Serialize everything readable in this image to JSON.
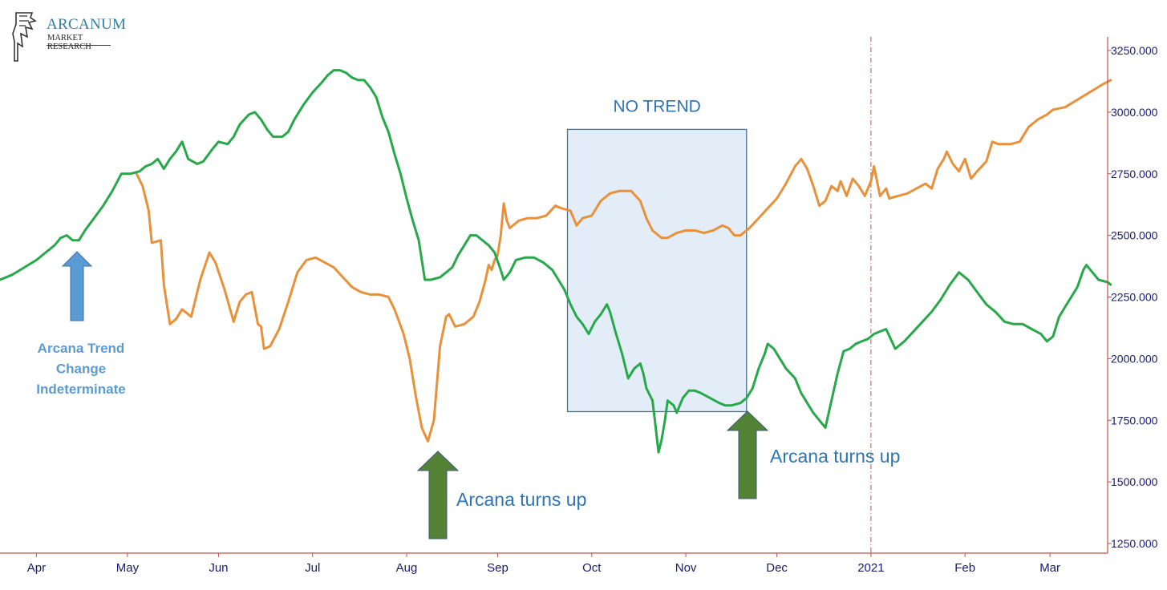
{
  "logo": {
    "name": "ARCANUM",
    "subtitle": "MARKET RESEARCH"
  },
  "annotations": {
    "no_trend": "NO TREND",
    "indeterminate": "Arcana Trend\nChange\nIndeterminate",
    "turns_up_1": "Arcana turns up",
    "turns_up_2": "Arcana turns up"
  },
  "colors": {
    "price_line": "#e8913a",
    "indicator_line": "#27a84a",
    "up_arrow_dark": "#548235",
    "up_arrow_blue": "#5b9bd5",
    "no_trend_box": "#e3edf8",
    "axis": "#c0504d",
    "tick_text": "#1a1a6e",
    "annotation_text": "#2e74b5"
  },
  "chart_data": {
    "type": "line",
    "x_axis": {
      "ticks": [
        {
          "label": "Apr",
          "x": 12
        },
        {
          "label": "May",
          "x": 42
        },
        {
          "label": "Jun",
          "x": 72
        },
        {
          "label": "Jul",
          "x": 103
        },
        {
          "label": "Aug",
          "x": 134
        },
        {
          "label": "Sep",
          "x": 164
        },
        {
          "label": "Oct",
          "x": 195
        },
        {
          "label": "Nov",
          "x": 226
        },
        {
          "label": "Dec",
          "x": 256
        },
        {
          "label": "2021",
          "x": 287
        },
        {
          "label": "Feb",
          "x": 318
        },
        {
          "label": "Mar",
          "x": 346
        }
      ],
      "range": [
        0,
        365
      ]
    },
    "y_axis": {
      "ticks": [
        "3250.000",
        "3000.000",
        "2750.000",
        "2500.000",
        "2250.000",
        "2000.000",
        "1750.000",
        "1500.000",
        "1250.000"
      ],
      "values": [
        3250,
        3000,
        2750,
        2500,
        2250,
        2000,
        1750,
        1500,
        1250
      ],
      "range": [
        1200,
        3290
      ]
    },
    "no_trend_range": {
      "x": [
        187,
        246
      ],
      "y": [
        1785,
        2930
      ]
    },
    "year_marker_x": 287,
    "series": [
      {
        "key": "price",
        "points": [
          [
            45,
            2750
          ],
          [
            47,
            2700
          ],
          [
            49,
            2600
          ],
          [
            50,
            2470
          ],
          [
            53,
            2480
          ],
          [
            54,
            2300
          ],
          [
            56,
            2140
          ],
          [
            58,
            2160
          ],
          [
            60,
            2200
          ],
          [
            63,
            2170
          ],
          [
            66,
            2320
          ],
          [
            69,
            2430
          ],
          [
            71,
            2390
          ],
          [
            74,
            2280
          ],
          [
            77,
            2150
          ],
          [
            79,
            2230
          ],
          [
            81,
            2260
          ],
          [
            83,
            2270
          ],
          [
            85,
            2140
          ],
          [
            86,
            2130
          ],
          [
            87,
            2040
          ],
          [
            89,
            2050
          ],
          [
            92,
            2120
          ],
          [
            95,
            2230
          ],
          [
            98,
            2350
          ],
          [
            101,
            2400
          ],
          [
            104,
            2410
          ],
          [
            107,
            2390
          ],
          [
            110,
            2370
          ],
          [
            113,
            2330
          ],
          [
            116,
            2290
          ],
          [
            119,
            2270
          ],
          [
            122,
            2260
          ],
          [
            125,
            2260
          ],
          [
            128,
            2250
          ],
          [
            130,
            2200
          ],
          [
            133,
            2100
          ],
          [
            135,
            2000
          ],
          [
            137,
            1850
          ],
          [
            139,
            1720
          ],
          [
            141,
            1665
          ],
          [
            143,
            1750
          ],
          [
            145,
            2050
          ],
          [
            147,
            2170
          ],
          [
            148,
            2180
          ],
          [
            150,
            2130
          ],
          [
            153,
            2140
          ],
          [
            156,
            2170
          ],
          [
            158,
            2230
          ],
          [
            160,
            2320
          ],
          [
            161,
            2380
          ],
          [
            162,
            2360
          ],
          [
            163,
            2400
          ],
          [
            164,
            2420
          ],
          [
            165,
            2500
          ],
          [
            166,
            2630
          ],
          [
            167,
            2560
          ],
          [
            168,
            2530
          ],
          [
            171,
            2560
          ],
          [
            174,
            2570
          ],
          [
            177,
            2570
          ],
          [
            180,
            2580
          ],
          [
            183,
            2620
          ],
          [
            185,
            2610
          ],
          [
            188,
            2600
          ],
          [
            190,
            2540
          ],
          [
            192,
            2570
          ],
          [
            195,
            2580
          ],
          [
            198,
            2640
          ],
          [
            201,
            2670
          ],
          [
            204,
            2680
          ],
          [
            208,
            2680
          ],
          [
            211,
            2640
          ],
          [
            213,
            2570
          ],
          [
            215,
            2520
          ],
          [
            218,
            2490
          ],
          [
            220,
            2490
          ],
          [
            223,
            2510
          ],
          [
            226,
            2520
          ],
          [
            229,
            2520
          ],
          [
            232,
            2510
          ],
          [
            235,
            2520
          ],
          [
            238,
            2540
          ],
          [
            240,
            2530
          ],
          [
            242,
            2500
          ],
          [
            244,
            2500
          ],
          [
            247,
            2530
          ],
          [
            250,
            2570
          ],
          [
            253,
            2610
          ],
          [
            256,
            2650
          ],
          [
            259,
            2710
          ],
          [
            262,
            2780
          ],
          [
            264,
            2810
          ],
          [
            266,
            2770
          ],
          [
            268,
            2700
          ],
          [
            270,
            2620
          ],
          [
            272,
            2640
          ],
          [
            274,
            2700
          ],
          [
            276,
            2680
          ],
          [
            277,
            2720
          ],
          [
            279,
            2660
          ],
          [
            281,
            2730
          ],
          [
            283,
            2700
          ],
          [
            285,
            2660
          ],
          [
            287,
            2720
          ],
          [
            288,
            2780
          ],
          [
            290,
            2660
          ],
          [
            292,
            2690
          ],
          [
            293,
            2650
          ],
          [
            296,
            2660
          ],
          [
            299,
            2670
          ],
          [
            302,
            2690
          ],
          [
            305,
            2710
          ],
          [
            307,
            2690
          ],
          [
            309,
            2770
          ],
          [
            311,
            2810
          ],
          [
            312,
            2840
          ],
          [
            314,
            2790
          ],
          [
            316,
            2760
          ],
          [
            318,
            2810
          ],
          [
            320,
            2730
          ],
          [
            322,
            2760
          ],
          [
            325,
            2800
          ],
          [
            327,
            2880
          ],
          [
            329,
            2870
          ],
          [
            333,
            2870
          ],
          [
            336,
            2880
          ],
          [
            339,
            2940
          ],
          [
            342,
            2970
          ],
          [
            345,
            2990
          ],
          [
            347,
            3010
          ],
          [
            351,
            3020
          ],
          [
            355,
            3050
          ],
          [
            359,
            3080
          ],
          [
            363,
            3110
          ],
          [
            366,
            3130
          ]
        ]
      },
      {
        "key": "indicator",
        "points": [
          [
            0,
            2320
          ],
          [
            4,
            2340
          ],
          [
            8,
            2370
          ],
          [
            12,
            2400
          ],
          [
            15,
            2430
          ],
          [
            18,
            2460
          ],
          [
            20,
            2490
          ],
          [
            22,
            2500
          ],
          [
            24,
            2480
          ],
          [
            26,
            2480
          ],
          [
            28,
            2520
          ],
          [
            31,
            2570
          ],
          [
            34,
            2620
          ],
          [
            37,
            2680
          ],
          [
            40,
            2750
          ],
          [
            43,
            2750
          ],
          [
            46,
            2760
          ],
          [
            48,
            2780
          ],
          [
            50,
            2790
          ],
          [
            52,
            2810
          ],
          [
            54,
            2770
          ],
          [
            56,
            2810
          ],
          [
            58,
            2840
          ],
          [
            60,
            2880
          ],
          [
            62,
            2810
          ],
          [
            65,
            2790
          ],
          [
            67,
            2800
          ],
          [
            70,
            2850
          ],
          [
            72,
            2880
          ],
          [
            75,
            2870
          ],
          [
            77,
            2900
          ],
          [
            79,
            2950
          ],
          [
            82,
            2990
          ],
          [
            84,
            3000
          ],
          [
            86,
            2970
          ],
          [
            88,
            2930
          ],
          [
            90,
            2900
          ],
          [
            93,
            2900
          ],
          [
            95,
            2920
          ],
          [
            97,
            2970
          ],
          [
            100,
            3030
          ],
          [
            103,
            3080
          ],
          [
            106,
            3120
          ],
          [
            108,
            3150
          ],
          [
            110,
            3170
          ],
          [
            112,
            3170
          ],
          [
            114,
            3160
          ],
          [
            116,
            3140
          ],
          [
            118,
            3130
          ],
          [
            120,
            3130
          ],
          [
            122,
            3100
          ],
          [
            124,
            3060
          ],
          [
            126,
            2980
          ],
          [
            128,
            2920
          ],
          [
            130,
            2830
          ],
          [
            132,
            2750
          ],
          [
            134,
            2650
          ],
          [
            136,
            2560
          ],
          [
            138,
            2480
          ],
          [
            140,
            2320
          ],
          [
            142,
            2320
          ],
          [
            145,
            2330
          ],
          [
            147,
            2350
          ],
          [
            149,
            2370
          ],
          [
            151,
            2420
          ],
          [
            153,
            2460
          ],
          [
            155,
            2500
          ],
          [
            157,
            2500
          ],
          [
            159,
            2480
          ],
          [
            161,
            2460
          ],
          [
            163,
            2430
          ],
          [
            165,
            2360
          ],
          [
            166,
            2320
          ],
          [
            168,
            2350
          ],
          [
            170,
            2400
          ],
          [
            173,
            2410
          ],
          [
            176,
            2410
          ],
          [
            179,
            2390
          ],
          [
            182,
            2360
          ],
          [
            184,
            2320
          ],
          [
            186,
            2280
          ],
          [
            188,
            2220
          ],
          [
            190,
            2170
          ],
          [
            192,
            2140
          ],
          [
            194,
            2100
          ],
          [
            196,
            2150
          ],
          [
            198,
            2180
          ],
          [
            200,
            2220
          ],
          [
            201,
            2190
          ],
          [
            203,
            2100
          ],
          [
            205,
            2020
          ],
          [
            207,
            1920
          ],
          [
            209,
            1960
          ],
          [
            211,
            1980
          ],
          [
            212,
            1940
          ],
          [
            213,
            1880
          ],
          [
            215,
            1830
          ],
          [
            216,
            1730
          ],
          [
            217,
            1620
          ],
          [
            218,
            1670
          ],
          [
            219,
            1740
          ],
          [
            220,
            1830
          ],
          [
            222,
            1810
          ],
          [
            223,
            1780
          ],
          [
            225,
            1840
          ],
          [
            227,
            1870
          ],
          [
            229,
            1870
          ],
          [
            231,
            1860
          ],
          [
            234,
            1840
          ],
          [
            237,
            1820
          ],
          [
            239,
            1810
          ],
          [
            241,
            1810
          ],
          [
            244,
            1820
          ],
          [
            246,
            1840
          ],
          [
            248,
            1880
          ],
          [
            250,
            1960
          ],
          [
            252,
            2020
          ],
          [
            253,
            2060
          ],
          [
            255,
            2040
          ],
          [
            257,
            2000
          ],
          [
            259,
            1960
          ],
          [
            262,
            1920
          ],
          [
            264,
            1860
          ],
          [
            266,
            1820
          ],
          [
            268,
            1780
          ],
          [
            270,
            1750
          ],
          [
            272,
            1720
          ],
          [
            274,
            1830
          ],
          [
            276,
            1940
          ],
          [
            278,
            2030
          ],
          [
            280,
            2040
          ],
          [
            282,
            2060
          ],
          [
            284,
            2070
          ],
          [
            286,
            2080
          ],
          [
            288,
            2100
          ],
          [
            290,
            2110
          ],
          [
            292,
            2120
          ],
          [
            295,
            2040
          ],
          [
            298,
            2070
          ],
          [
            301,
            2110
          ],
          [
            304,
            2150
          ],
          [
            307,
            2190
          ],
          [
            310,
            2240
          ],
          [
            313,
            2300
          ],
          [
            316,
            2350
          ],
          [
            319,
            2320
          ],
          [
            322,
            2270
          ],
          [
            325,
            2220
          ],
          [
            328,
            2190
          ],
          [
            331,
            2150
          ],
          [
            334,
            2140
          ],
          [
            337,
            2140
          ],
          [
            340,
            2120
          ],
          [
            343,
            2100
          ],
          [
            345,
            2070
          ],
          [
            347,
            2090
          ],
          [
            349,
            2170
          ],
          [
            352,
            2230
          ],
          [
            355,
            2290
          ],
          [
            357,
            2360
          ],
          [
            358,
            2380
          ],
          [
            360,
            2350
          ],
          [
            362,
            2320
          ],
          [
            365,
            2310
          ],
          [
            366,
            2300
          ]
        ]
      }
    ]
  }
}
